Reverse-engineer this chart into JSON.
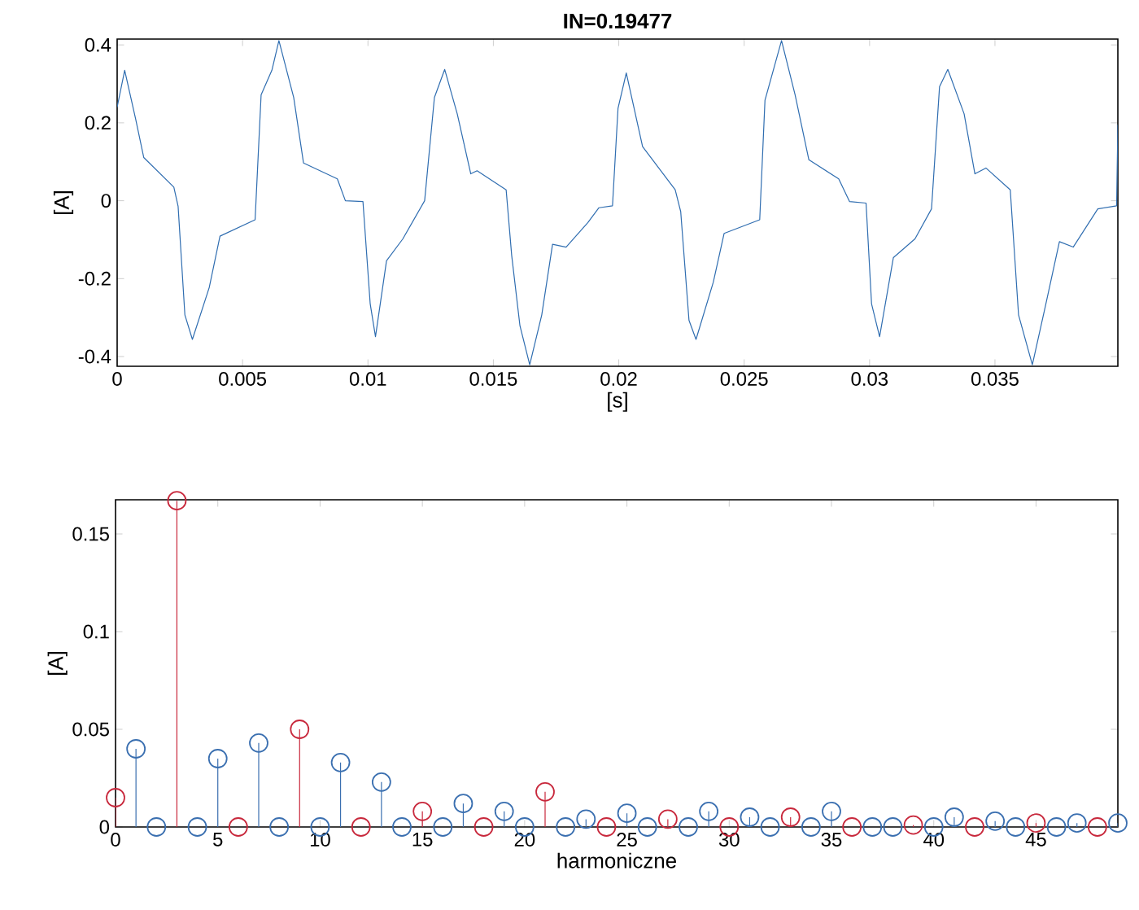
{
  "chart_data": [
    {
      "type": "line",
      "title": "IN=0.19477",
      "xlabel": "[s]",
      "ylabel": "[A]",
      "color": "#2f6db0",
      "x": [
        0,
        0.0003,
        0.00074,
        0.00106,
        0.00226,
        0.00243,
        0.0027,
        0.003,
        0.00367,
        0.0041,
        0.0055,
        0.00574,
        0.00617,
        0.00645,
        0.00704,
        0.00743,
        0.00878,
        0.0091,
        0.0098,
        0.01009,
        0.0103,
        0.01074,
        0.01139,
        0.01226,
        0.01265,
        0.01306,
        0.01356,
        0.0141,
        0.01435,
        0.01551,
        0.01573,
        0.01606,
        0.01645,
        0.01693,
        0.01736,
        0.0179,
        0.01877,
        0.01921,
        0.01975,
        0.01997,
        0.0203,
        0.02095,
        0.02225,
        0.02247,
        0.0228,
        0.02308,
        0.02377,
        0.0242,
        0.02562,
        0.02583,
        0.02649,
        0.02703,
        0.02758,
        0.02877,
        0.0292,
        0.02986,
        0.03008,
        0.0304,
        0.03095,
        0.03181,
        0.03247,
        0.03279,
        0.03312,
        0.03377,
        0.0342,
        0.03464,
        0.03561,
        0.03594,
        0.03649,
        0.03703,
        0.03757,
        0.03812,
        0.0391,
        0.03985,
        0.0399
      ],
      "values": [
        0.24,
        0.335,
        0.209,
        0.111,
        0.035,
        -0.014,
        -0.293,
        -0.356,
        -0.223,
        -0.091,
        -0.049,
        0.272,
        0.335,
        0.411,
        0.265,
        0.097,
        0.056,
        0,
        -0.002,
        -0.265,
        -0.349,
        -0.154,
        -0.098,
        0,
        0.265,
        0.337,
        0.223,
        0.069,
        0.077,
        0.028,
        -0.14,
        -0.321,
        -0.421,
        -0.293,
        -0.112,
        -0.119,
        -0.056,
        -0.018,
        -0.013,
        0.237,
        0.328,
        0.139,
        0.028,
        -0.028,
        -0.307,
        -0.356,
        -0.209,
        -0.084,
        -0.049,
        0.258,
        0.411,
        0.272,
        0.105,
        0.056,
        -0.002,
        -0.006,
        -0.265,
        -0.349,
        -0.146,
        -0.098,
        -0.021,
        0.293,
        0.337,
        0.223,
        0.069,
        0.084,
        0.028,
        -0.293,
        -0.421,
        -0.265,
        -0.105,
        -0.119,
        -0.021,
        -0.013,
        0.195
      ],
      "xlim": [
        0,
        0.0399
      ],
      "ylim": [
        -0.425,
        0.415
      ],
      "xticks": [
        0,
        0.005,
        0.01,
        0.015,
        0.02,
        0.025,
        0.03,
        0.035
      ],
      "yticks": [
        -0.4,
        -0.2,
        0,
        0.2,
        0.4
      ]
    },
    {
      "type": "lollipop",
      "xlabel": "harmoniczne",
      "ylabel": "[A]",
      "marker": "circle",
      "x": [
        0,
        1,
        2,
        3,
        4,
        5,
        6,
        7,
        8,
        9,
        10,
        11,
        12,
        13,
        14,
        15,
        16,
        17,
        18,
        19,
        20,
        21,
        22,
        23,
        24,
        25,
        26,
        27,
        28,
        29,
        30,
        31,
        32,
        33,
        34,
        35,
        36,
        37,
        38,
        39,
        40,
        41,
        42,
        43,
        44,
        45,
        46,
        47,
        48,
        49
      ],
      "values": [
        0.015,
        0.04,
        0,
        0.167,
        0,
        0.035,
        0,
        0.043,
        0,
        0.05,
        0,
        0.033,
        0,
        0.023,
        0,
        0.008,
        0,
        0.012,
        0,
        0.008,
        0,
        0.018,
        0,
        0.004,
        0,
        0.007,
        0,
        0.004,
        0,
        0.008,
        0,
        0.005,
        0,
        0.005,
        0,
        0.008,
        0,
        0,
        0,
        0.001,
        0,
        0.005,
        0,
        0.003,
        0,
        0.002,
        0,
        0.002,
        0,
        0.002
      ],
      "colors": [
        "#c8283c",
        "#3a6fb0",
        "#3a6fb0",
        "#c8283c",
        "#3a6fb0",
        "#3a6fb0",
        "#c8283c",
        "#3a6fb0",
        "#3a6fb0",
        "#c8283c",
        "#3a6fb0",
        "#3a6fb0",
        "#c8283c",
        "#3a6fb0",
        "#3a6fb0",
        "#c8283c",
        "#3a6fb0",
        "#3a6fb0",
        "#c8283c",
        "#3a6fb0",
        "#3a6fb0",
        "#c8283c",
        "#3a6fb0",
        "#3a6fb0",
        "#c8283c",
        "#3a6fb0",
        "#3a6fb0",
        "#c8283c",
        "#3a6fb0",
        "#3a6fb0",
        "#c8283c",
        "#3a6fb0",
        "#3a6fb0",
        "#c8283c",
        "#3a6fb0",
        "#3a6fb0",
        "#c8283c",
        "#3a6fb0",
        "#3a6fb0",
        "#c8283c",
        "#3a6fb0",
        "#3a6fb0",
        "#c8283c",
        "#3a6fb0",
        "#3a6fb0",
        "#c8283c",
        "#3a6fb0",
        "#3a6fb0",
        "#c8283c",
        "#3a6fb0"
      ],
      "xlim": [
        0,
        49
      ],
      "ylim": [
        0,
        0.1675
      ],
      "xticks": [
        0,
        5,
        10,
        15,
        20,
        25,
        30,
        35,
        40,
        45
      ],
      "yticks": [
        0,
        0.05,
        0.1,
        0.15
      ]
    }
  ]
}
